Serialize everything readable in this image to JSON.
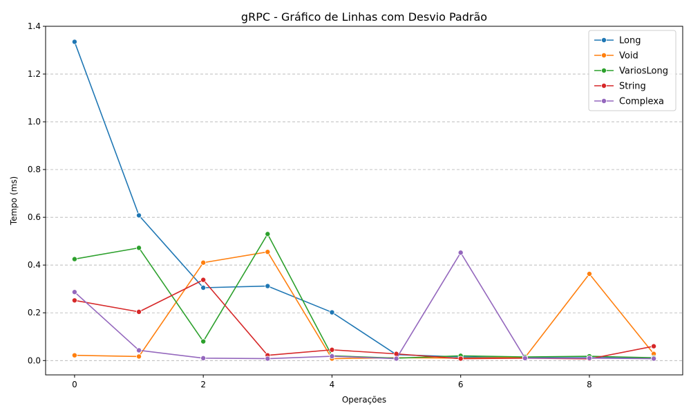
{
  "chart_data": {
    "type": "line",
    "title": "gRPC - Gráfico de Linhas com Desvio Padrão",
    "xlabel": "Operações",
    "ylabel": "Tempo (ms)",
    "x": [
      0,
      1,
      2,
      3,
      4,
      5,
      6,
      7,
      8,
      9
    ],
    "xticks": [
      "0",
      "2",
      "4",
      "6",
      "8"
    ],
    "yticks": [
      "0.0",
      "0.2",
      "0.4",
      "0.6",
      "0.8",
      "1.0",
      "1.2",
      "1.4"
    ],
    "xlim": [
      -0.45,
      9.45
    ],
    "ylim": [
      -0.06,
      1.4
    ],
    "grid": "y-dashed",
    "legend_position": "top-right",
    "series": [
      {
        "name": "Long",
        "color": "#1f77b4",
        "values": [
          1.335,
          0.608,
          0.305,
          0.312,
          0.202,
          0.025,
          0.015,
          0.012,
          0.012,
          0.01
        ]
      },
      {
        "name": "Void",
        "color": "#ff7f0e",
        "values": [
          0.022,
          0.017,
          0.41,
          0.455,
          0.008,
          0.012,
          0.01,
          0.013,
          0.363,
          0.028
        ]
      },
      {
        "name": "VariosLong",
        "color": "#2ca02c",
        "values": [
          0.425,
          0.472,
          0.08,
          0.53,
          0.02,
          0.01,
          0.02,
          0.015,
          0.018,
          0.012
        ]
      },
      {
        "name": "String",
        "color": "#d62728",
        "values": [
          0.252,
          0.204,
          0.338,
          0.022,
          0.045,
          0.028,
          0.008,
          0.01,
          0.007,
          0.06
        ]
      },
      {
        "name": "Complexa",
        "color": "#9467bd",
        "values": [
          0.287,
          0.043,
          0.01,
          0.008,
          0.018,
          0.008,
          0.452,
          0.01,
          0.01,
          0.008
        ]
      }
    ]
  }
}
